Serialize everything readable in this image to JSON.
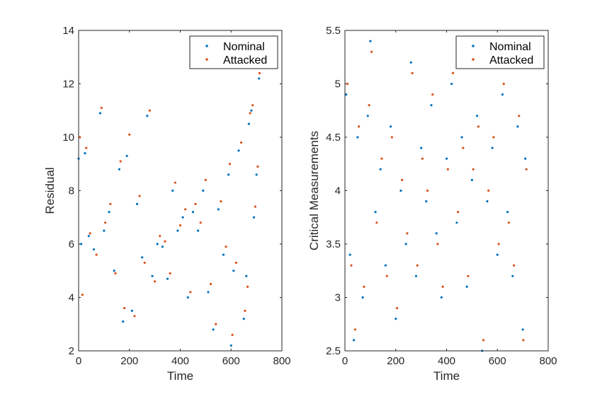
{
  "chart_data": [
    {
      "type": "scatter",
      "title": "",
      "xlabel": "Time",
      "ylabel": "Residual",
      "xlim": [
        0,
        800
      ],
      "ylim": [
        2,
        14
      ],
      "xticks": [
        "0",
        "200",
        "400",
        "600",
        "800"
      ],
      "yticks": [
        "2",
        "4",
        "6",
        "8",
        "10",
        "12",
        "14"
      ],
      "legend": {
        "placement": "top-right",
        "entries": [
          "Nominal",
          "Attacked"
        ]
      },
      "series": [
        {
          "name": "Nominal",
          "color": "#0072BD",
          "x": [
            0,
            10,
            25,
            40,
            60,
            85,
            100,
            120,
            140,
            160,
            175,
            190,
            210,
            230,
            250,
            270,
            290,
            310,
            330,
            350,
            370,
            390,
            410,
            430,
            450,
            470,
            490,
            510,
            530,
            550,
            570,
            590,
            600,
            610,
            630,
            650,
            660,
            670,
            680,
            690,
            700,
            710
          ],
          "y": [
            9.2,
            6.0,
            9.4,
            6.3,
            5.8,
            10.9,
            6.5,
            7.2,
            5.0,
            8.8,
            3.1,
            9.3,
            3.5,
            7.5,
            5.5,
            10.8,
            4.8,
            6.0,
            5.9,
            4.7,
            8.0,
            6.5,
            7.0,
            4.0,
            7.2,
            6.5,
            8.0,
            4.2,
            2.8,
            7.3,
            5.6,
            8.6,
            2.2,
            5.0,
            9.5,
            3.2,
            4.8,
            10.5,
            11.0,
            7.0,
            8.6,
            12.2
          ]
        },
        {
          "name": "Attacked",
          "color": "#D95319",
          "x": [
            5,
            15,
            30,
            45,
            70,
            90,
            105,
            125,
            145,
            165,
            180,
            200,
            220,
            240,
            260,
            280,
            300,
            320,
            340,
            360,
            380,
            400,
            420,
            440,
            460,
            480,
            500,
            520,
            540,
            560,
            580,
            595,
            605,
            620,
            640,
            655,
            665,
            675,
            685,
            695,
            705,
            712
          ],
          "y": [
            10.0,
            4.1,
            9.6,
            6.4,
            5.6,
            11.1,
            6.8,
            7.5,
            4.9,
            9.1,
            3.6,
            10.1,
            3.3,
            7.8,
            5.3,
            11.0,
            4.6,
            6.3,
            6.1,
            4.9,
            8.3,
            6.7,
            7.3,
            4.2,
            7.5,
            6.8,
            8.4,
            4.5,
            3.0,
            7.6,
            5.9,
            9.0,
            2.6,
            5.3,
            9.8,
            3.5,
            4.4,
            10.9,
            11.2,
            7.4,
            8.9,
            12.4
          ]
        }
      ]
    },
    {
      "type": "scatter",
      "title": "",
      "xlabel": "Time",
      "ylabel": "Critical Measurements",
      "xlim": [
        0,
        800
      ],
      "ylim": [
        2.5,
        5.5
      ],
      "xticks": [
        "0",
        "200",
        "400",
        "600",
        "800"
      ],
      "yticks": [
        "2.5",
        "3",
        "3.5",
        "4",
        "4.5",
        "5",
        "5.5"
      ],
      "legend": {
        "placement": "top-right",
        "entries": [
          "Nominal",
          "Attacked"
        ]
      },
      "series": [
        {
          "name": "Nominal",
          "color": "#0072BD",
          "x": [
            5,
            20,
            35,
            50,
            70,
            90,
            100,
            120,
            140,
            160,
            180,
            200,
            220,
            240,
            260,
            280,
            300,
            320,
            340,
            360,
            380,
            400,
            420,
            440,
            460,
            480,
            500,
            520,
            540,
            560,
            580,
            600,
            620,
            640,
            660,
            680,
            700,
            710
          ],
          "y": [
            4.9,
            3.4,
            2.6,
            4.5,
            3.0,
            4.7,
            5.4,
            3.8,
            4.2,
            3.3,
            4.6,
            2.8,
            4.0,
            3.5,
            5.2,
            3.2,
            4.4,
            3.9,
            4.8,
            3.6,
            3.0,
            4.3,
            5.0,
            3.7,
            4.5,
            3.1,
            4.1,
            4.7,
            2.5,
            3.9,
            4.4,
            3.4,
            4.9,
            3.8,
            3.2,
            4.6,
            2.7,
            4.3
          ]
        },
        {
          "name": "Attacked",
          "color": "#D95319",
          "x": [
            10,
            25,
            40,
            55,
            75,
            95,
            105,
            125,
            145,
            165,
            185,
            205,
            225,
            245,
            265,
            285,
            305,
            325,
            345,
            365,
            385,
            405,
            425,
            445,
            465,
            485,
            505,
            525,
            545,
            565,
            585,
            605,
            625,
            645,
            665,
            685,
            702,
            714
          ],
          "y": [
            5.0,
            3.3,
            2.7,
            4.6,
            3.1,
            4.8,
            5.3,
            3.7,
            4.3,
            3.2,
            4.5,
            2.9,
            4.1,
            3.6,
            5.1,
            3.3,
            4.3,
            4.0,
            4.9,
            3.5,
            3.1,
            4.2,
            5.1,
            3.8,
            4.4,
            3.2,
            4.2,
            4.6,
            2.6,
            4.0,
            4.5,
            3.5,
            5.0,
            3.7,
            3.3,
            4.7,
            2.6,
            4.2
          ]
        }
      ]
    }
  ]
}
